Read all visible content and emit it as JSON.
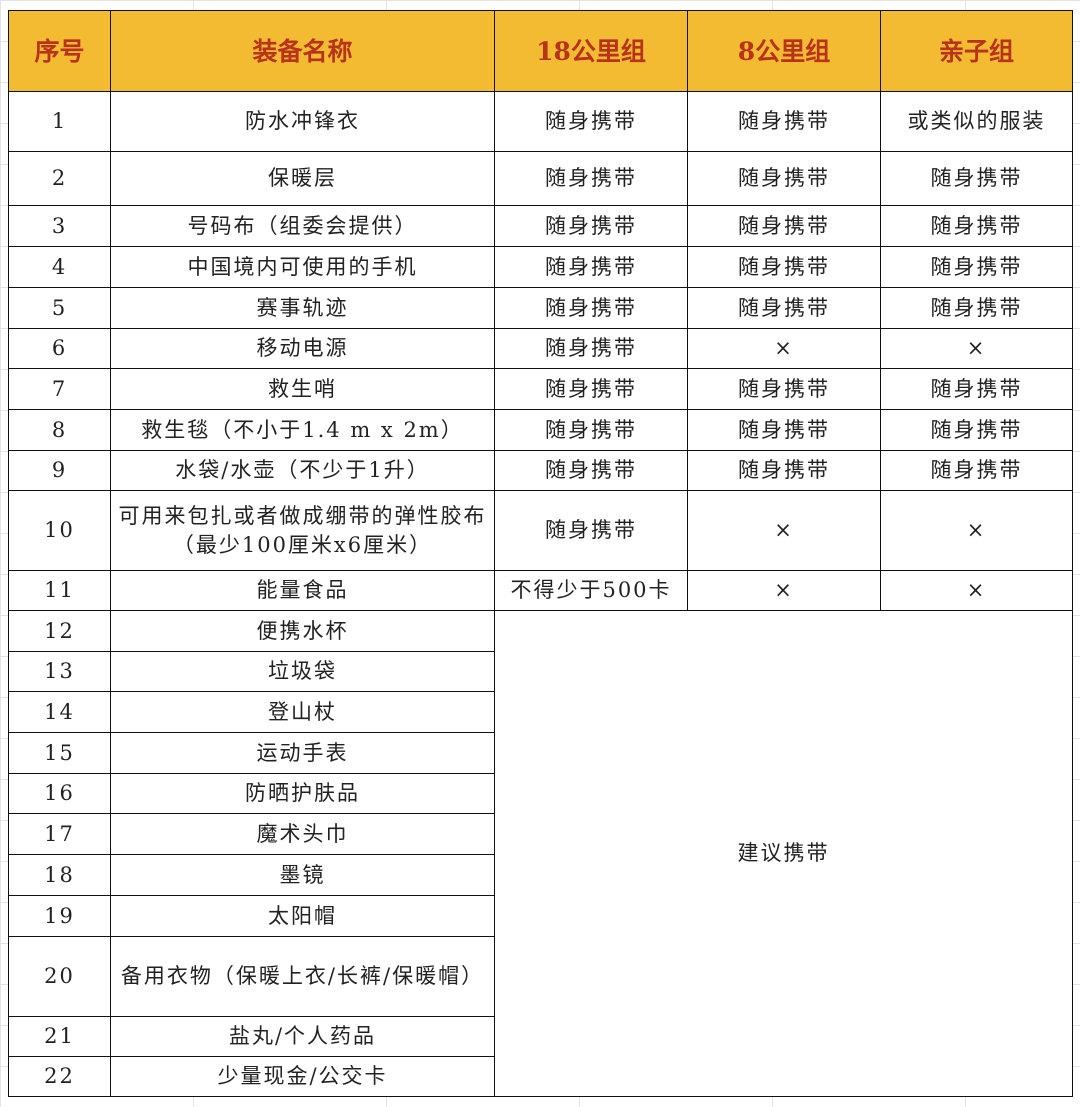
{
  "colors": {
    "header_bg": "#f2bb32",
    "header_text": "#b8321c"
  },
  "headers": [
    "序号",
    "装备名称",
    "18公里组",
    "8公里组",
    "亲子组"
  ],
  "rows": [
    {
      "no": "1",
      "name": "防水冲锋衣",
      "g18": "随身携带",
      "g8": "随身携带",
      "family": "或类似的服装"
    },
    {
      "no": "2",
      "name": "保暖层",
      "g18": "随身携带",
      "g8": "随身携带",
      "family": "随身携带"
    },
    {
      "no": "3",
      "name": "号码布（组委会提供）",
      "g18": "随身携带",
      "g8": "随身携带",
      "family": "随身携带"
    },
    {
      "no": "4",
      "name": "中国境内可使用的手机",
      "g18": "随身携带",
      "g8": "随身携带",
      "family": "随身携带"
    },
    {
      "no": "5",
      "name": "赛事轨迹",
      "g18": "随身携带",
      "g8": "随身携带",
      "family": "随身携带"
    },
    {
      "no": "6",
      "name": "移动电源",
      "g18": "随身携带",
      "g8": "×",
      "family": "×"
    },
    {
      "no": "7",
      "name": "救生哨",
      "g18": "随身携带",
      "g8": "随身携带",
      "family": "随身携带"
    },
    {
      "no": "8",
      "name": "救生毯（不小于1.4 m x 2m）",
      "g18": "随身携带",
      "g8": "随身携带",
      "family": "随身携带"
    },
    {
      "no": "9",
      "name": "水袋/水壶（不少于1升）",
      "g18": "随身携带",
      "g8": "随身携带",
      "family": "随身携带"
    },
    {
      "no": "10",
      "name": "可用来包扎或者做成绷带的弹性胶布（最少100厘米x6厘米）",
      "g18": "随身携带",
      "g8": "×",
      "family": "×"
    },
    {
      "no": "11",
      "name": "能量食品",
      "g18": "不得少于500卡",
      "g8": "×",
      "family": "×"
    },
    {
      "no": "12",
      "name": "便携水杯"
    },
    {
      "no": "13",
      "name": "垃圾袋"
    },
    {
      "no": "14",
      "name": "登山杖"
    },
    {
      "no": "15",
      "name": "运动手表"
    },
    {
      "no": "16",
      "name": "防晒护肤品"
    },
    {
      "no": "17",
      "name": "魔术头巾"
    },
    {
      "no": "18",
      "name": "墨镜"
    },
    {
      "no": "19",
      "name": "太阳帽"
    },
    {
      "no": "20",
      "name": "备用衣物（保暖上衣/长裤/保暖帽）"
    },
    {
      "no": "21",
      "name": "盐丸/个人药品"
    },
    {
      "no": "22",
      "name": "少量现金/公交卡"
    }
  ],
  "merged_recommendation": "建议携带"
}
